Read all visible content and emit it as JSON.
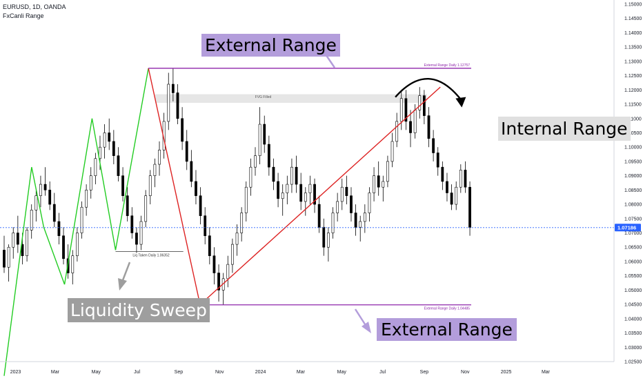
{
  "header": {
    "symbol": "EURUSD, 1D, OANDA",
    "indicator": "FxCanli Range"
  },
  "annotations": {
    "external_top": "External Range",
    "external_bottom": "External Range",
    "internal": "Internal Range",
    "liquidity": "Liquidity Sweep",
    "fvg": "FVG Filled",
    "ext_daily_top": "External Range Daily 1.12757",
    "ext_daily_bottom": "External Range Daily 1.04485",
    "liq_taken": "Liq Taken Daily 1.06352"
  },
  "colors": {
    "up_leg": "#22cc22",
    "down_leg": "#dd2222",
    "range_line": "#8e24aa",
    "callout_bg_purple": "#b39ddb",
    "callout_bg_gray": "#9e9e9e",
    "callout_bg_light": "#e0e0e0",
    "price_marker": "#2962ff",
    "candle": "#000000"
  },
  "chart_data": {
    "type": "candlestick",
    "title": "EURUSD, 1D, OANDA",
    "y_axis": {
      "ticks": [
        "1.02500",
        "1.03000",
        "1.03500",
        "1.04000",
        "1.04500",
        "1.05000",
        "1.05500",
        "1.06000",
        "1.06500",
        "1.07000",
        "1.07500",
        "1.08000",
        "1.08500",
        "1.09000",
        "1.09500",
        "1.10000",
        "1.10500",
        "1.11000",
        "1.11500",
        "1.12000",
        "1.12500",
        "1.13000",
        "1.13500",
        "1.14000",
        "1.14500",
        "1.15000"
      ],
      "min": 1.025,
      "max": 1.15
    },
    "x_axis": {
      "ticks": [
        "2023",
        "Mar",
        "May",
        "Jul",
        "Sep",
        "Nov",
        "2024",
        "Mar",
        "May",
        "Jul",
        "Sep",
        "Nov",
        "2025",
        "Mar"
      ]
    },
    "last_price": "1.07186",
    "levels": [
      {
        "label": "External Range Daily 1.12757",
        "value": 1.12757
      },
      {
        "label": "External Range Daily 1.04485",
        "value": 1.04485
      },
      {
        "label": "Liq Taken Daily 1.06352",
        "value": 1.06352
      }
    ],
    "fvg_zone": {
      "label": "FVG Filled",
      "low": 1.1155,
      "high": 1.1185
    },
    "swing_legs": [
      {
        "from": [
          "2022-12-15",
          1.02
        ],
        "to": [
          "2023-01-25",
          1.093
        ],
        "color": "green"
      },
      {
        "from": [
          "2023-01-25",
          1.093
        ],
        "to": [
          "2023-02-12",
          1.072
        ],
        "color": "green"
      },
      {
        "from": [
          "2023-02-12",
          1.072
        ],
        "to": [
          "2023-03-15",
          1.052
        ],
        "color": "green"
      },
      {
        "from": [
          "2023-03-15",
          1.052
        ],
        "to": [
          "2023-04-25",
          1.11
        ],
        "color": "green"
      },
      {
        "from": [
          "2023-04-25",
          1.11
        ],
        "to": [
          "2023-05-30",
          1.064
        ],
        "color": "green"
      },
      {
        "from": [
          "2023-05-30",
          1.064
        ],
        "to": [
          "2023-07-18",
          1.1276
        ],
        "color": "green"
      },
      {
        "from": [
          "2023-07-18",
          1.1276
        ],
        "to": [
          "2023-10-03",
          1.0449
        ],
        "color": "red"
      },
      {
        "from": [
          "2023-10-03",
          1.0449
        ],
        "to": [
          "2024-09-25",
          1.121
        ],
        "color": "red"
      }
    ],
    "candles": [
      [
        1.064,
        1.069,
        1.056,
        1.058
      ],
      [
        1.058,
        1.066,
        1.053,
        1.065
      ],
      [
        1.065,
        1.072,
        1.061,
        1.07
      ],
      [
        1.07,
        1.076,
        1.063,
        1.066
      ],
      [
        1.066,
        1.07,
        1.059,
        1.062
      ],
      [
        1.062,
        1.072,
        1.06,
        1.071
      ],
      [
        1.071,
        1.08,
        1.068,
        1.078
      ],
      [
        1.078,
        1.085,
        1.074,
        1.083
      ],
      [
        1.083,
        1.09,
        1.079,
        1.087
      ],
      [
        1.087,
        1.093,
        1.083,
        1.085
      ],
      [
        1.085,
        1.088,
        1.078,
        1.08
      ],
      [
        1.08,
        1.084,
        1.072,
        1.074
      ],
      [
        1.074,
        1.077,
        1.066,
        1.069
      ],
      [
        1.069,
        1.072,
        1.059,
        1.061
      ],
      [
        1.061,
        1.066,
        1.054,
        1.056
      ],
      [
        1.056,
        1.064,
        1.052,
        1.062
      ],
      [
        1.062,
        1.072,
        1.06,
        1.07
      ],
      [
        1.07,
        1.081,
        1.068,
        1.079
      ],
      [
        1.079,
        1.087,
        1.076,
        1.085
      ],
      [
        1.085,
        1.093,
        1.082,
        1.09
      ],
      [
        1.09,
        1.098,
        1.087,
        1.096
      ],
      [
        1.096,
        1.104,
        1.092,
        1.1
      ],
      [
        1.1,
        1.108,
        1.096,
        1.105
      ],
      [
        1.105,
        1.11,
        1.099,
        1.102
      ],
      [
        1.102,
        1.106,
        1.094,
        1.097
      ],
      [
        1.097,
        1.1,
        1.088,
        1.09
      ],
      [
        1.09,
        1.093,
        1.081,
        1.083
      ],
      [
        1.083,
        1.086,
        1.074,
        1.076
      ],
      [
        1.076,
        1.079,
        1.068,
        1.07
      ],
      [
        1.07,
        1.072,
        1.063,
        1.066
      ],
      [
        1.066,
        1.076,
        1.064,
        1.074
      ],
      [
        1.074,
        1.085,
        1.072,
        1.083
      ],
      [
        1.083,
        1.092,
        1.08,
        1.09
      ],
      [
        1.09,
        1.096,
        1.086,
        1.094
      ],
      [
        1.094,
        1.102,
        1.09,
        1.099
      ],
      [
        1.099,
        1.112,
        1.096,
        1.109
      ],
      [
        1.109,
        1.126,
        1.106,
        1.122
      ],
      [
        1.122,
        1.1276,
        1.116,
        1.119
      ],
      [
        1.119,
        1.122,
        1.108,
        1.11
      ],
      [
        1.11,
        1.114,
        1.099,
        1.102
      ],
      [
        1.102,
        1.106,
        1.092,
        1.095
      ],
      [
        1.095,
        1.099,
        1.086,
        1.088
      ],
      [
        1.088,
        1.092,
        1.08,
        1.083
      ],
      [
        1.083,
        1.086,
        1.073,
        1.076
      ],
      [
        1.076,
        1.079,
        1.066,
        1.069
      ],
      [
        1.069,
        1.072,
        1.059,
        1.062
      ],
      [
        1.062,
        1.065,
        1.052,
        1.056
      ],
      [
        1.056,
        1.059,
        1.046,
        1.05
      ],
      [
        1.05,
        1.056,
        1.0449,
        1.054
      ],
      [
        1.054,
        1.062,
        1.051,
        1.059
      ],
      [
        1.059,
        1.068,
        1.056,
        1.066
      ],
      [
        1.066,
        1.073,
        1.062,
        1.07
      ],
      [
        1.07,
        1.079,
        1.067,
        1.077
      ],
      [
        1.077,
        1.088,
        1.074,
        1.086
      ],
      [
        1.086,
        1.096,
        1.083,
        1.093
      ],
      [
        1.093,
        1.1,
        1.09,
        1.097
      ],
      [
        1.097,
        1.114,
        1.094,
        1.108
      ],
      [
        1.108,
        1.111,
        1.098,
        1.101
      ],
      [
        1.101,
        1.104,
        1.09,
        1.093
      ],
      [
        1.093,
        1.096,
        1.085,
        1.088
      ],
      [
        1.088,
        1.091,
        1.079,
        1.082
      ],
      [
        1.082,
        1.087,
        1.076,
        1.084
      ],
      [
        1.084,
        1.09,
        1.08,
        1.087
      ],
      [
        1.087,
        1.096,
        1.084,
        1.093
      ],
      [
        1.093,
        1.097,
        1.084,
        1.087
      ],
      [
        1.087,
        1.091,
        1.078,
        1.081
      ],
      [
        1.081,
        1.086,
        1.076,
        1.084
      ],
      [
        1.084,
        1.09,
        1.08,
        1.087
      ],
      [
        1.087,
        1.089,
        1.077,
        1.08
      ],
      [
        1.08,
        1.083,
        1.07,
        1.072
      ],
      [
        1.072,
        1.075,
        1.062,
        1.065
      ],
      [
        1.065,
        1.072,
        1.06,
        1.07
      ],
      [
        1.07,
        1.079,
        1.068,
        1.077
      ],
      [
        1.077,
        1.084,
        1.074,
        1.081
      ],
      [
        1.081,
        1.089,
        1.078,
        1.086
      ],
      [
        1.086,
        1.09,
        1.08,
        1.083
      ],
      [
        1.083,
        1.086,
        1.074,
        1.077
      ],
      [
        1.077,
        1.08,
        1.069,
        1.072
      ],
      [
        1.072,
        1.076,
        1.067,
        1.074
      ],
      [
        1.074,
        1.08,
        1.07,
        1.077
      ],
      [
        1.077,
        1.086,
        1.074,
        1.084
      ],
      [
        1.084,
        1.093,
        1.081,
        1.09
      ],
      [
        1.09,
        1.095,
        1.083,
        1.086
      ],
      [
        1.086,
        1.09,
        1.081,
        1.088
      ],
      [
        1.088,
        1.097,
        1.086,
        1.095
      ],
      [
        1.095,
        1.105,
        1.093,
        1.102
      ],
      [
        1.102,
        1.112,
        1.1,
        1.109
      ],
      [
        1.109,
        1.12,
        1.106,
        1.117
      ],
      [
        1.117,
        1.12,
        1.106,
        1.109
      ],
      [
        1.109,
        1.113,
        1.1,
        1.105
      ],
      [
        1.105,
        1.115,
        1.103,
        1.113
      ],
      [
        1.113,
        1.121,
        1.11,
        1.118
      ],
      [
        1.118,
        1.12,
        1.108,
        1.111
      ],
      [
        1.111,
        1.114,
        1.1,
        1.103
      ],
      [
        1.103,
        1.106,
        1.095,
        1.098
      ],
      [
        1.098,
        1.1,
        1.09,
        1.093
      ],
      [
        1.093,
        1.095,
        1.085,
        1.088
      ],
      [
        1.088,
        1.091,
        1.081,
        1.084
      ],
      [
        1.084,
        1.087,
        1.078,
        1.08
      ],
      [
        1.08,
        1.088,
        1.078,
        1.086
      ],
      [
        1.086,
        1.094,
        1.084,
        1.092
      ],
      [
        1.092,
        1.095,
        1.084,
        1.086
      ],
      [
        1.086,
        1.088,
        1.069,
        1.0719
      ]
    ]
  }
}
